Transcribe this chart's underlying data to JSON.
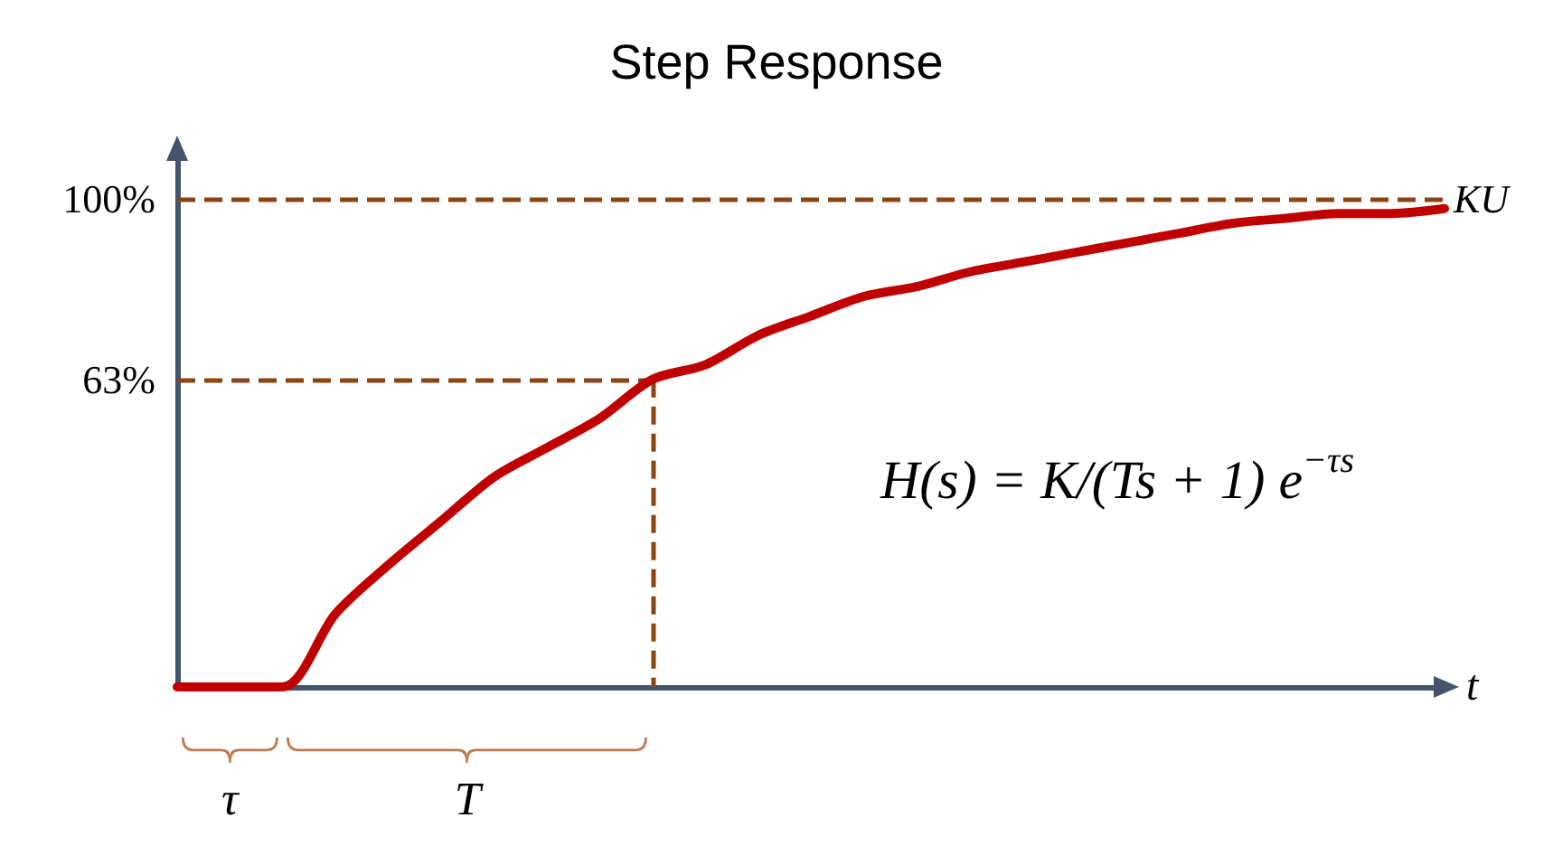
{
  "chart_data": {
    "type": "line",
    "title": "Step Response",
    "xlabel": "t",
    "categories": [
      null,
      null,
      null,
      null,
      null,
      null,
      null,
      null,
      null,
      null,
      null,
      null,
      null,
      null,
      null,
      null,
      null,
      null,
      null,
      null,
      null,
      null,
      null,
      null,
      null
    ],
    "series": [
      {
        "color": "#c00000",
        "values": [
          0,
          0,
          0,
          15,
          25,
          34,
          43,
          49,
          55,
          63,
          66,
          72,
          76,
          80,
          82,
          85,
          87,
          89,
          91,
          93,
          95,
          96,
          97,
          97,
          98
        ]
      }
    ],
    "ylim": [
      0,
      110
    ],
    "yticks": [
      {
        "value": 63,
        "label": "63%"
      },
      {
        "value": 100,
        "label": "100%"
      }
    ],
    "tick_labels": "y",
    "grid": false,
    "marker": "none",
    "line_style": "solid",
    "ref_lines": [
      {
        "axis": "y",
        "value": 100,
        "label": "KU",
        "color": "#8b4513",
        "line_style": "dashed"
      },
      {
        "axis": "y",
        "value": 63,
        "color": "#8b4513",
        "line_style": "dashed"
      }
    ],
    "annotations": [
      "τ",
      "T",
      "H(s) = K/(Ts + 1) e$^{−τs}$"
    ]
  }
}
